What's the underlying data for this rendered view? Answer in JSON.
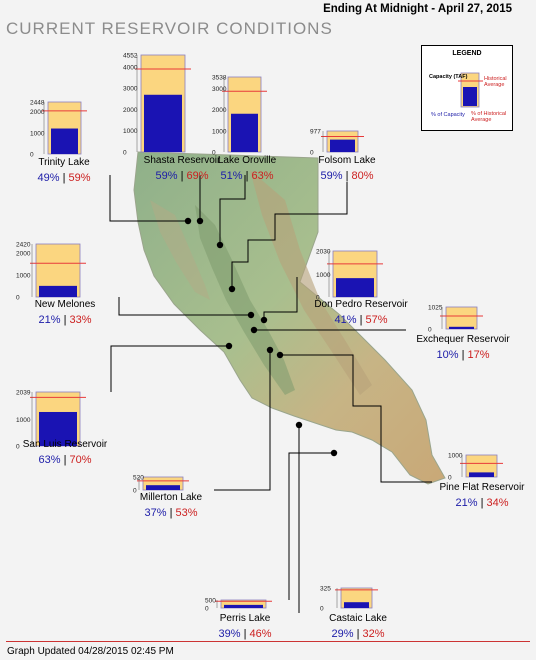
{
  "header": {
    "title": "CURRENT RESERVOIR CONDITIONS",
    "date_line": "Ending At Midnight - April 27, 2015"
  },
  "legend": {
    "title": "LEGEND",
    "capacity_label": "Capacity (TAF)",
    "historical_label": "Historical Average",
    "pct_capacity_label": "% of Capacity",
    "pct_hist_label": "% of Historical Average"
  },
  "footer": {
    "updated": "Graph Updated 04/28/2015 02:45 PM"
  },
  "colors": {
    "capacity_fill": "#fbd680",
    "storage_fill": "#1a13b3",
    "historical_line": "#e83a3a",
    "box_border": "#8a7fbf"
  },
  "chart_data": {
    "type": "bar",
    "series": [
      {
        "name": "Trinity Lake",
        "capacity": 2448,
        "ticks": [
          2448,
          2000,
          1000,
          0
        ],
        "pct_capacity": 49,
        "pct_hist": 59,
        "pct_capacity_label": "49%",
        "pct_hist_label": "59%"
      },
      {
        "name": "Shasta Reservoir",
        "capacity": 4552,
        "ticks": [
          4552,
          4000,
          3000,
          2000,
          1000,
          0
        ],
        "pct_capacity": 59,
        "pct_hist": 69,
        "pct_capacity_label": "59%",
        "pct_hist_label": "69%"
      },
      {
        "name": "Lake Oroville",
        "capacity": 3538,
        "ticks": [
          3538,
          3000,
          2000,
          1000,
          0
        ],
        "pct_capacity": 51,
        "pct_hist": 63,
        "pct_capacity_label": "51%",
        "pct_hist_label": "63%"
      },
      {
        "name": "Folsom Lake",
        "capacity": 977,
        "ticks": [
          977,
          0
        ],
        "pct_capacity": 59,
        "pct_hist": 80,
        "pct_capacity_label": "59%",
        "pct_hist_label": "80%"
      },
      {
        "name": "New Melones",
        "capacity": 2420,
        "ticks": [
          2420,
          2000,
          1000,
          0
        ],
        "pct_capacity": 21,
        "pct_hist": 33,
        "pct_capacity_label": "21%",
        "pct_hist_label": "33%"
      },
      {
        "name": "Don Pedro Reservoir",
        "capacity": 2030,
        "ticks": [
          2030,
          1000,
          0
        ],
        "pct_capacity": 41,
        "pct_hist": 57,
        "pct_capacity_label": "41%",
        "pct_hist_label": "57%"
      },
      {
        "name": "Exchequer Reservoir",
        "capacity": 1025,
        "ticks": [
          1025,
          0
        ],
        "pct_capacity": 10,
        "pct_hist": 17,
        "pct_capacity_label": "10%",
        "pct_hist_label": "17%"
      },
      {
        "name": "San Luis Reservoir",
        "capacity": 2039,
        "ticks": [
          2039,
          1000,
          0
        ],
        "pct_capacity": 63,
        "pct_hist": 70,
        "pct_capacity_label": "63%",
        "pct_hist_label": "70%"
      },
      {
        "name": "Millerton Lake",
        "capacity": 520,
        "ticks": [
          520,
          0
        ],
        "pct_capacity": 37,
        "pct_hist": 53,
        "pct_capacity_label": "37%",
        "pct_hist_label": "53%"
      },
      {
        "name": "Pine Flat Reservoir",
        "capacity": 1000,
        "ticks": [
          1000,
          0
        ],
        "pct_capacity": 21,
        "pct_hist": 34,
        "pct_capacity_label": "21%",
        "pct_hist_label": "34%"
      },
      {
        "name": "Perris Lake",
        "capacity": 500,
        "ticks": [
          500,
          0
        ],
        "pct_capacity": 39,
        "pct_hist": 46,
        "pct_capacity_label": "39%",
        "pct_hist_label": "46%"
      },
      {
        "name": "Castaic Lake",
        "capacity": 325,
        "ticks": [
          325,
          0
        ],
        "pct_capacity": 29,
        "pct_hist": 32,
        "pct_capacity_label": "29%",
        "pct_hist_label": "32%"
      }
    ]
  }
}
